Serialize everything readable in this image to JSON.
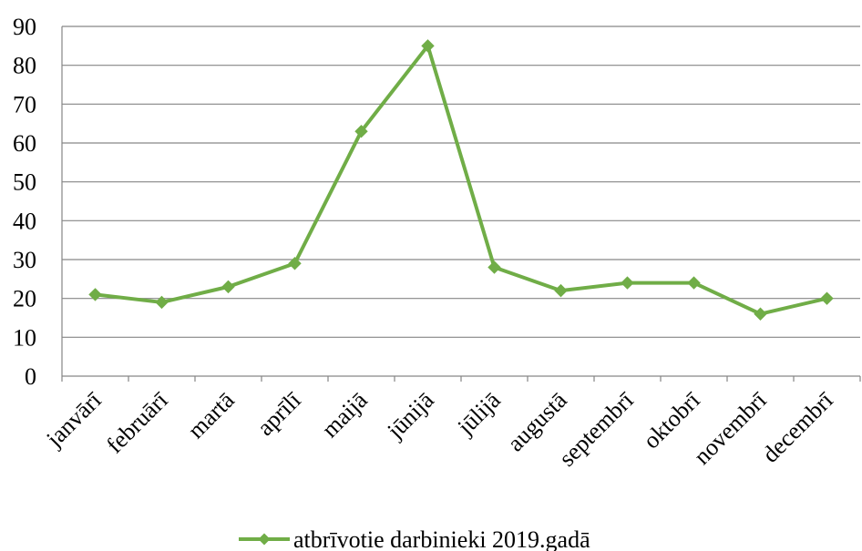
{
  "chart_data": {
    "type": "line",
    "title": "",
    "xlabel": "",
    "ylabel": "",
    "categories": [
      "janvārī",
      "februārī",
      "martā",
      "aprīlī",
      "maijā",
      "jūnijā",
      "jūlijā",
      "augustā",
      "septembrī",
      "oktobrī",
      "novembrī",
      "decembrī"
    ],
    "y_ticks": [
      "0",
      "10",
      "20",
      "30",
      "40",
      "50",
      "60",
      "70",
      "80",
      "90"
    ],
    "ylim": [
      0,
      90
    ],
    "grid": true,
    "legend_position": "bottom",
    "series": [
      {
        "name": "atbrīvotie darbinieki 2019.gadā",
        "values": [
          21,
          19,
          23,
          29,
          63,
          85,
          28,
          22,
          24,
          24,
          16,
          20
        ],
        "color": "#70ad47",
        "marker": "diamond"
      }
    ],
    "colors": {
      "gridline": "#868686",
      "axis": "#868686",
      "text": "#000000"
    }
  }
}
